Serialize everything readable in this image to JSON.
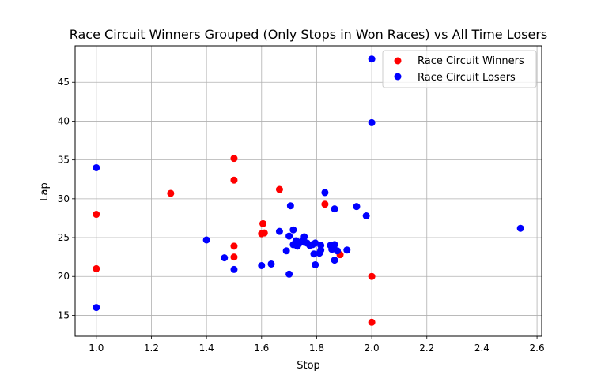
{
  "chart_data": {
    "type": "scatter",
    "title": "Race Circuit Winners Grouped (Only Stops in Won Races) vs All Time Losers",
    "xlabel": "Stop",
    "ylabel": "Lap",
    "xlim": [
      0.923,
      2.617
    ],
    "ylim": [
      12.3,
      49.7
    ],
    "x_ticks": [
      1.0,
      1.2,
      1.4,
      1.6,
      1.8,
      2.0,
      2.2,
      2.4,
      2.6
    ],
    "x_tick_labels": [
      "1.0",
      "1.2",
      "1.4",
      "1.6",
      "1.8",
      "2.0",
      "2.2",
      "2.4",
      "2.6"
    ],
    "y_ticks": [
      15,
      20,
      25,
      30,
      35,
      40,
      45
    ],
    "y_tick_labels": [
      "15",
      "20",
      "25",
      "30",
      "35",
      "40",
      "45"
    ],
    "grid": true,
    "legend_position": "top-right",
    "series": [
      {
        "name": "Race Circuit Winners",
        "color": "#ff0000",
        "points": [
          [
            1.0,
            28.0
          ],
          [
            1.0,
            21.0
          ],
          [
            1.27,
            30.7
          ],
          [
            1.5,
            35.2
          ],
          [
            1.5,
            32.4
          ],
          [
            1.5,
            23.9
          ],
          [
            1.5,
            22.5
          ],
          [
            1.6,
            25.5
          ],
          [
            1.605,
            26.8
          ],
          [
            1.61,
            25.6
          ],
          [
            1.665,
            31.2
          ],
          [
            1.83,
            29.3
          ],
          [
            1.885,
            22.8
          ],
          [
            2.0,
            20.0
          ],
          [
            2.0,
            14.1
          ]
        ]
      },
      {
        "name": "Race Circuit Losers",
        "color": "#0000ff",
        "points": [
          [
            1.0,
            34.0
          ],
          [
            1.0,
            16.0
          ],
          [
            1.4,
            24.7
          ],
          [
            1.465,
            22.4
          ],
          [
            1.5,
            20.9
          ],
          [
            1.6,
            21.4
          ],
          [
            1.635,
            21.6
          ],
          [
            1.665,
            25.8
          ],
          [
            1.69,
            23.3
          ],
          [
            1.7,
            20.3
          ],
          [
            1.705,
            29.1
          ],
          [
            1.7,
            25.2
          ],
          [
            1.715,
            26.0
          ],
          [
            1.715,
            24.1
          ],
          [
            1.725,
            24.6
          ],
          [
            1.73,
            23.9
          ],
          [
            1.735,
            24.2
          ],
          [
            1.745,
            24.5
          ],
          [
            1.755,
            25.1
          ],
          [
            1.755,
            24.4
          ],
          [
            1.765,
            24.3
          ],
          [
            1.775,
            24.0
          ],
          [
            1.785,
            24.1
          ],
          [
            1.79,
            22.9
          ],
          [
            1.795,
            24.3
          ],
          [
            1.795,
            21.5
          ],
          [
            1.81,
            23.0
          ],
          [
            1.815,
            23.4
          ],
          [
            1.815,
            24.0
          ],
          [
            1.83,
            30.8
          ],
          [
            1.85,
            24.0
          ],
          [
            1.855,
            23.5
          ],
          [
            1.865,
            24.1
          ],
          [
            1.865,
            28.7
          ],
          [
            1.865,
            22.1
          ],
          [
            1.875,
            23.3
          ],
          [
            1.91,
            23.4
          ],
          [
            1.945,
            29.0
          ],
          [
            1.98,
            27.8
          ],
          [
            2.0,
            48.0
          ],
          [
            2.0,
            39.8
          ],
          [
            2.54,
            26.2
          ]
        ]
      }
    ]
  }
}
